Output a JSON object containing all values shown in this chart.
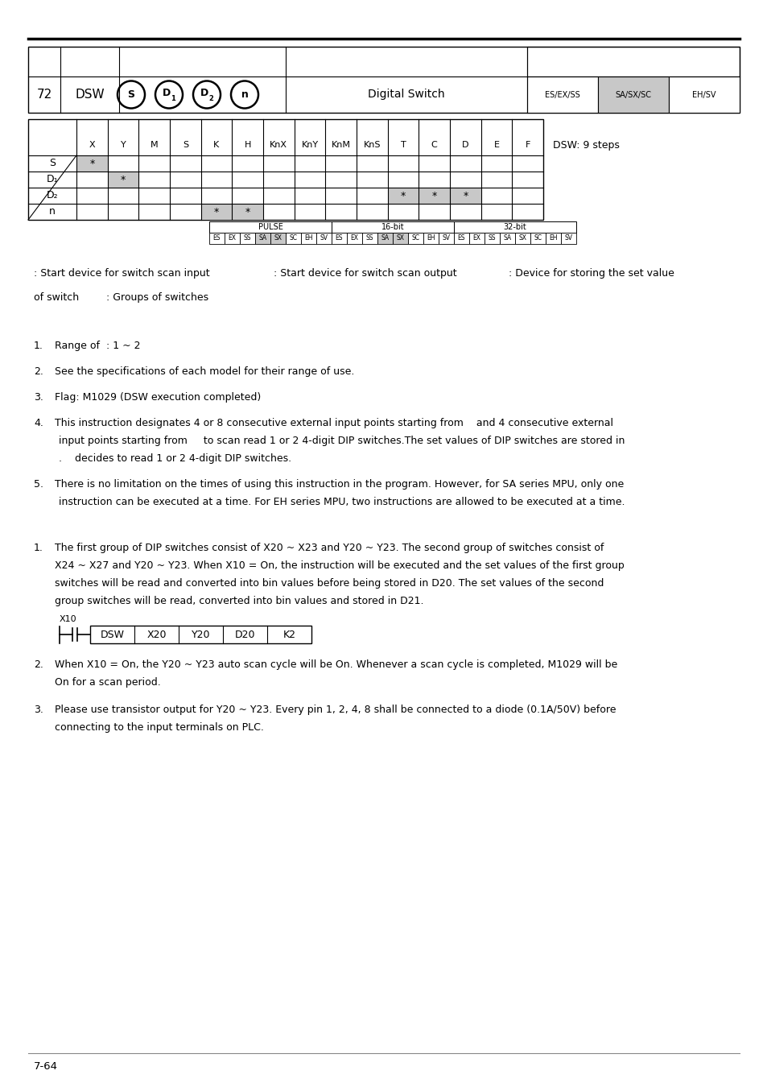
{
  "page_num": "7-64",
  "instr_num": "72",
  "instr_name": "DSW",
  "instr_desc": "Digital Switch",
  "instr_note": "DSW: 9 steps",
  "operands_circle": [
    "S",
    "D1",
    "D2",
    "n"
  ],
  "compat_parts": [
    "ES/EX/SS",
    "SA/SX/SC",
    "EH/SV"
  ],
  "compat_shaded": [
    1
  ],
  "table_headers": [
    "X",
    "Y",
    "M",
    "S",
    "K",
    "H",
    "KnX",
    "KnY",
    "KnM",
    "KnS",
    "T",
    "C",
    "D",
    "E",
    "F"
  ],
  "table_rows": [
    "S",
    "D1",
    "D2",
    "n"
  ],
  "table_stars": {
    "S": [
      0
    ],
    "D1": [
      1
    ],
    "D2": [
      10,
      11,
      12
    ],
    "n": [
      4,
      5
    ]
  },
  "pulse_row_label": "PULSE",
  "bit16_label": "16-bit",
  "bit32_label": "32-bit",
  "pulse_cells": [
    "ES",
    "EX",
    "SS",
    "SA",
    "SX",
    "SC",
    "EH",
    "SV"
  ],
  "shaded_pulse": [
    3,
    4
  ],
  "shaded_16bit": [
    3,
    4
  ],
  "shaded_32bit": [],
  "note_line1": ": Start device for switch scan input",
  "note_line1b": ": Start device for switch scan output",
  "note_line1c": ": Device for storing the set value",
  "note_line2a": "of switch",
  "note_line2b": ": Groups of switches",
  "points": [
    {
      "num": "1.",
      "lines": [
        "Range of  : 1 ~ 2"
      ]
    },
    {
      "num": "2.",
      "lines": [
        "See the specifications of each model for their range of use."
      ]
    },
    {
      "num": "3.",
      "lines": [
        "Flag: M1029 (DSW execution completed)"
      ]
    },
    {
      "num": "4.",
      "lines": [
        "This instruction designates 4 or 8 consecutive external input points starting from    and 4 consecutive external",
        "input points starting from     to scan read 1 or 2 4-digit DIP switches.The set values of DIP switches are stored in",
        ".    decides to read 1 or 2 4-digit DIP switches."
      ]
    },
    {
      "num": "5.",
      "lines": [
        "There is no limitation on the times of using this instruction in the program. However, for SA series MPU, only one",
        "instruction can be executed at a time. For EH series MPU, two instructions are allowed to be executed at a time."
      ]
    }
  ],
  "example1_num": "1.",
  "example1_lines": [
    "The first group of DIP switches consist of X20 ~ X23 and Y20 ~ Y23. The second group of switches consist of",
    "X24 ~ X27 and Y20 ~ Y23. When X10 = On, the instruction will be executed and the set values of the first group",
    "switches will be read and converted into bin values before being stored in D20. The set values of the second",
    "group switches will be read, converted into bin values and stored in D21."
  ],
  "ladder_contact": "X10",
  "ladder_boxes": [
    "DSW",
    "X20",
    "Y20",
    "D20",
    "K2"
  ],
  "example2_num": "2.",
  "example2_lines": [
    "When X10 = On, the Y20 ~ Y23 auto scan cycle will be On. Whenever a scan cycle is completed, M1029 will be",
    "On for a scan period."
  ],
  "example3_num": "3.",
  "example3_lines": [
    "Please use transistor output for Y20 ~ Y23. Every pin 1, 2, 4, 8 shall be connected to a diode (0.1A/50V) before",
    "connecting to the input terminals on PLC."
  ],
  "bg_color": "#ffffff",
  "shaded_color": "#c8c8c8",
  "font_body": 9.0,
  "font_table": 8.0,
  "font_small": 7.0
}
